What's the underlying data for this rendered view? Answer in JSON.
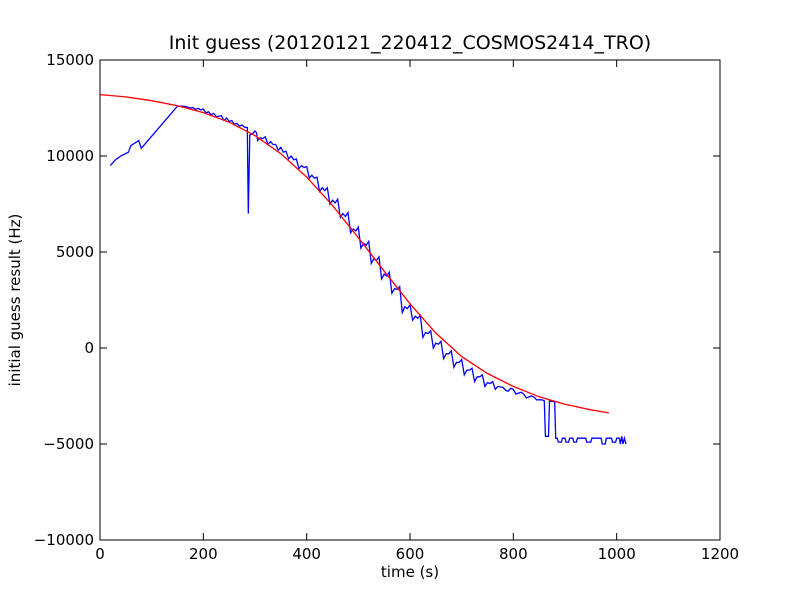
{
  "chart_data": {
    "type": "line",
    "title": "Init guess (20120121_220412_COSMOS2414_TRO)",
    "xlabel": "time (s)",
    "ylabel": "initial guess result (Hz)",
    "xlim": [
      0,
      1200
    ],
    "ylim": [
      -10000,
      15000
    ],
    "xticks": [
      0,
      200,
      400,
      600,
      800,
      1000,
      1200
    ],
    "yticks": [
      -10000,
      -5000,
      0,
      5000,
      10000,
      15000
    ],
    "xtick_labels": [
      "0",
      "200",
      "400",
      "600",
      "800",
      "1000",
      "1200"
    ],
    "ytick_labels": [
      "−10000",
      "−5000",
      "0",
      "5000",
      "10000",
      "15000"
    ],
    "grid": false,
    "legend": "none",
    "series": [
      {
        "color": "#0000ff",
        "points": [
          [
            20,
            9500
          ],
          [
            30,
            9800
          ],
          [
            40,
            10000
          ],
          [
            55,
            10200
          ],
          [
            60,
            10550
          ],
          [
            75,
            10800
          ],
          [
            80,
            10400
          ],
          [
            150,
            12600
          ],
          [
            160,
            12600
          ],
          [
            165,
            12580
          ],
          [
            175,
            12500
          ],
          [
            180,
            12520
          ],
          [
            185,
            12420
          ],
          [
            190,
            12480
          ],
          [
            195,
            12400
          ],
          [
            200,
            12450
          ],
          [
            205,
            12250
          ],
          [
            210,
            12300
          ],
          [
            215,
            12150
          ],
          [
            220,
            12220
          ],
          [
            225,
            12050
          ],
          [
            235,
            12100
          ],
          [
            240,
            11850
          ],
          [
            245,
            11980
          ],
          [
            250,
            11800
          ],
          [
            255,
            11850
          ],
          [
            260,
            11650
          ],
          [
            265,
            11700
          ],
          [
            270,
            11550
          ],
          [
            275,
            11620
          ],
          [
            280,
            11500
          ],
          [
            285,
            11480
          ],
          [
            287,
            7000
          ],
          [
            290,
            11100
          ],
          [
            295,
            11150
          ],
          [
            300,
            11300
          ],
          [
            303,
            11200
          ],
          [
            305,
            10800
          ],
          [
            310,
            10950
          ],
          [
            315,
            10900
          ],
          [
            320,
            11000
          ],
          [
            325,
            10600
          ],
          [
            330,
            10750
          ],
          [
            335,
            10600
          ],
          [
            340,
            10600
          ],
          [
            345,
            10300
          ],
          [
            350,
            10450
          ],
          [
            355,
            10200
          ],
          [
            360,
            10250
          ],
          [
            365,
            9850
          ],
          [
            370,
            10000
          ],
          [
            375,
            9800
          ],
          [
            380,
            9850
          ],
          [
            385,
            9350
          ],
          [
            390,
            9500
          ],
          [
            395,
            9400
          ],
          [
            400,
            9450
          ],
          [
            405,
            8850
          ],
          [
            410,
            9000
          ],
          [
            415,
            8850
          ],
          [
            420,
            8900
          ],
          [
            425,
            8150
          ],
          [
            430,
            8350
          ],
          [
            435,
            8200
          ],
          [
            440,
            8350
          ],
          [
            445,
            7500
          ],
          [
            450,
            7700
          ],
          [
            455,
            7550
          ],
          [
            460,
            7750
          ],
          [
            465,
            6800
          ],
          [
            470,
            7000
          ],
          [
            475,
            6850
          ],
          [
            480,
            7050
          ],
          [
            485,
            6000
          ],
          [
            490,
            6200
          ],
          [
            495,
            6100
          ],
          [
            500,
            6300
          ],
          [
            505,
            5200
          ],
          [
            510,
            5450
          ],
          [
            515,
            5350
          ],
          [
            520,
            5550
          ],
          [
            525,
            4400
          ],
          [
            530,
            4650
          ],
          [
            535,
            4550
          ],
          [
            540,
            4750
          ],
          [
            545,
            3600
          ],
          [
            550,
            3850
          ],
          [
            555,
            3750
          ],
          [
            560,
            3950
          ],
          [
            565,
            2850
          ],
          [
            570,
            3100
          ],
          [
            575,
            3050
          ],
          [
            580,
            3200
          ],
          [
            585,
            1850
          ],
          [
            590,
            2150
          ],
          [
            595,
            2050
          ],
          [
            600,
            2250
          ],
          [
            605,
            1450
          ],
          [
            610,
            1650
          ],
          [
            615,
            1550
          ],
          [
            620,
            1700
          ],
          [
            625,
            550
          ],
          [
            630,
            800
          ],
          [
            635,
            750
          ],
          [
            640,
            900
          ],
          [
            645,
            0
          ],
          [
            650,
            250
          ],
          [
            655,
            200
          ],
          [
            660,
            350
          ],
          [
            665,
            -550
          ],
          [
            670,
            -300
          ],
          [
            675,
            -300
          ],
          [
            680,
            -150
          ],
          [
            685,
            -1000
          ],
          [
            690,
            -750
          ],
          [
            695,
            -750
          ],
          [
            700,
            -600
          ],
          [
            705,
            -1400
          ],
          [
            710,
            -1150
          ],
          [
            715,
            -1150
          ],
          [
            720,
            -1050
          ],
          [
            725,
            -1750
          ],
          [
            730,
            -1500
          ],
          [
            735,
            -1500
          ],
          [
            740,
            -1400
          ],
          [
            745,
            -2000
          ],
          [
            750,
            -1800
          ],
          [
            755,
            -1850
          ],
          [
            760,
            -1750
          ],
          [
            765,
            -2150
          ],
          [
            770,
            -2000
          ],
          [
            780,
            -2050
          ],
          [
            785,
            -2200
          ],
          [
            790,
            -2250
          ],
          [
            795,
            -2100
          ],
          [
            800,
            -2150
          ],
          [
            805,
            -2400
          ],
          [
            810,
            -2350
          ],
          [
            815,
            -2300
          ],
          [
            820,
            -2400
          ],
          [
            825,
            -2600
          ],
          [
            830,
            -2550
          ],
          [
            835,
            -2500
          ],
          [
            840,
            -2550
          ],
          [
            845,
            -2700
          ],
          [
            855,
            -2700
          ],
          [
            860,
            -2750
          ],
          [
            862,
            -4600
          ],
          [
            868,
            -4600
          ],
          [
            870,
            -2750
          ],
          [
            880,
            -2800
          ],
          [
            882,
            -4700
          ],
          [
            885,
            -4700
          ],
          [
            887,
            -4900
          ],
          [
            893,
            -4900
          ],
          [
            895,
            -4700
          ],
          [
            900,
            -4700
          ],
          [
            902,
            -4900
          ],
          [
            907,
            -4900
          ],
          [
            909,
            -4700
          ],
          [
            915,
            -4700
          ],
          [
            917,
            -4900
          ],
          [
            922,
            -4900
          ],
          [
            924,
            -4700
          ],
          [
            940,
            -4700
          ],
          [
            942,
            -4900
          ],
          [
            950,
            -4900
          ],
          [
            952,
            -4700
          ],
          [
            970,
            -4700
          ],
          [
            972,
            -5000
          ],
          [
            978,
            -5000
          ],
          [
            980,
            -4700
          ],
          [
            990,
            -4700
          ],
          [
            992,
            -4900
          ],
          [
            998,
            -4900
          ],
          [
            1000,
            -4700
          ],
          [
            1005,
            -4700
          ],
          [
            1007,
            -5000
          ],
          [
            1010,
            -4600
          ],
          [
            1012,
            -5000
          ],
          [
            1015,
            -4700
          ],
          [
            1018,
            -5000
          ]
        ]
      },
      {
        "color": "#ff0000",
        "points": [
          [
            0,
            13200
          ],
          [
            50,
            13080
          ],
          [
            100,
            12880
          ],
          [
            150,
            12620
          ],
          [
            200,
            12260
          ],
          [
            250,
            11760
          ],
          [
            300,
            11060
          ],
          [
            350,
            10120
          ],
          [
            400,
            8900
          ],
          [
            450,
            7420
          ],
          [
            500,
            5750
          ],
          [
            550,
            4000
          ],
          [
            600,
            2300
          ],
          [
            650,
            780
          ],
          [
            700,
            -450
          ],
          [
            750,
            -1330
          ],
          [
            800,
            -2000
          ],
          [
            850,
            -2540
          ],
          [
            900,
            -2930
          ],
          [
            950,
            -3220
          ],
          [
            985,
            -3380
          ]
        ]
      }
    ]
  }
}
